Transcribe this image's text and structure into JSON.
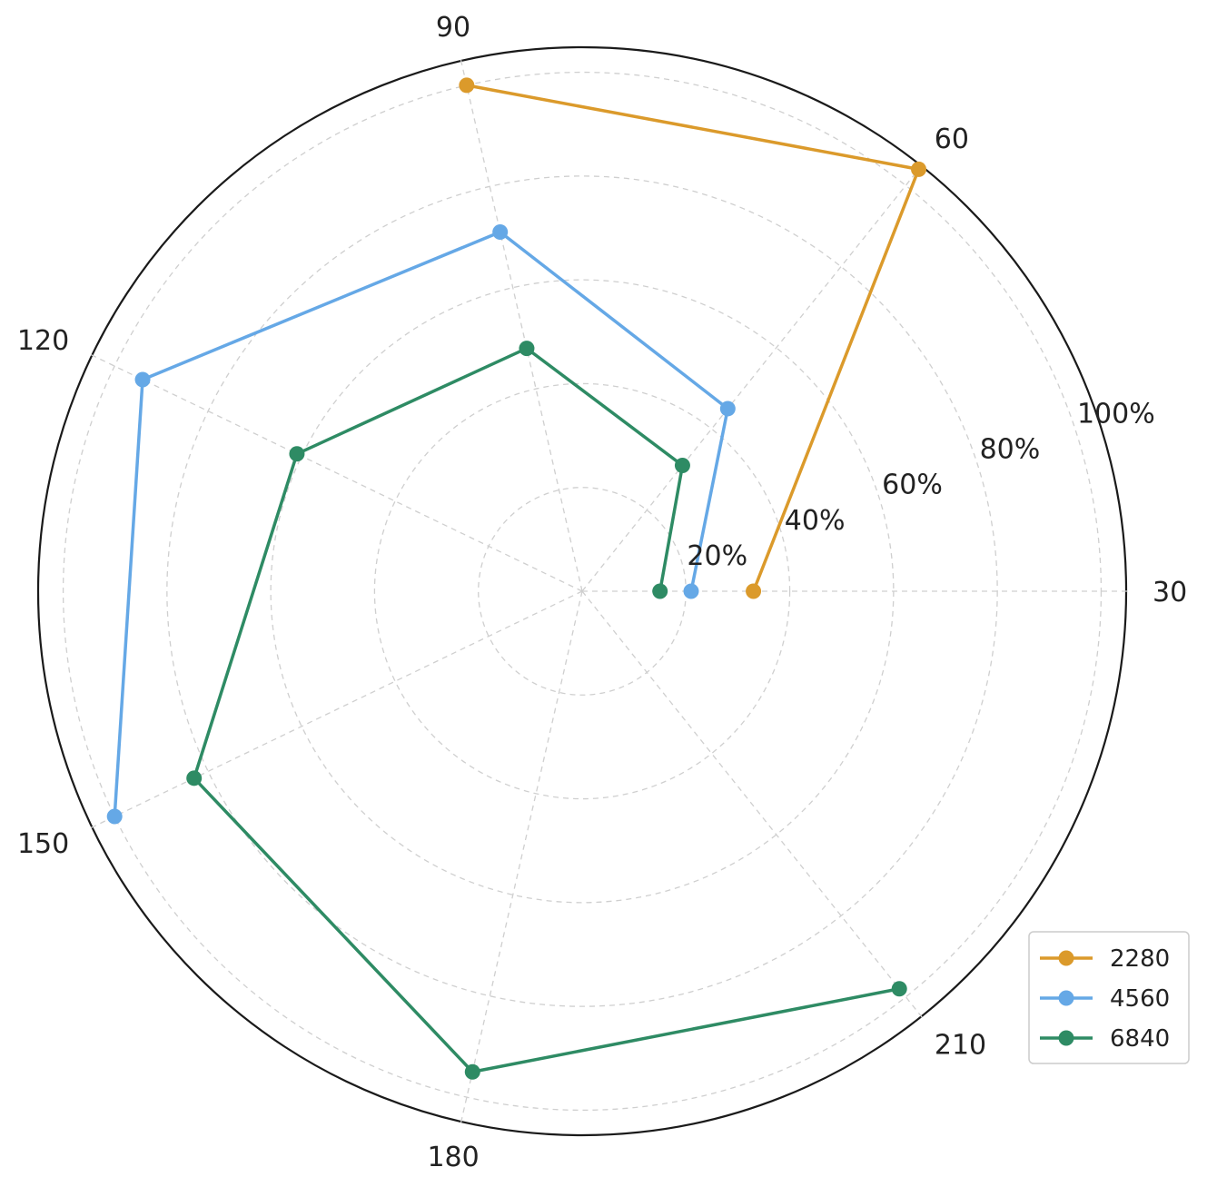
{
  "chart_data": {
    "type": "radar",
    "title": "",
    "theta_categories": [
      "30",
      "60",
      "90",
      "120",
      "150",
      "180",
      "210"
    ],
    "r_tick_labels": [
      "20%",
      "40%",
      "60%",
      "80%",
      "100%"
    ],
    "r_ticks": [
      0.2,
      0.4,
      0.6,
      0.8,
      1.0
    ],
    "r_range": [
      0,
      1.05
    ],
    "grid": true,
    "legend_position": "lower-right",
    "series": [
      {
        "name": "2280",
        "color": "#DB9A2B",
        "values": [
          0.33,
          1.04,
          1.0,
          null,
          null,
          null,
          null
        ]
      },
      {
        "name": "4560",
        "color": "#65A8E6",
        "values": [
          0.21,
          0.45,
          0.71,
          0.94,
          1.0,
          null,
          null
        ]
      },
      {
        "name": "6840",
        "color": "#2E8B64",
        "values": [
          0.15,
          0.31,
          0.48,
          0.61,
          0.83,
          0.95,
          0.98
        ]
      }
    ]
  }
}
